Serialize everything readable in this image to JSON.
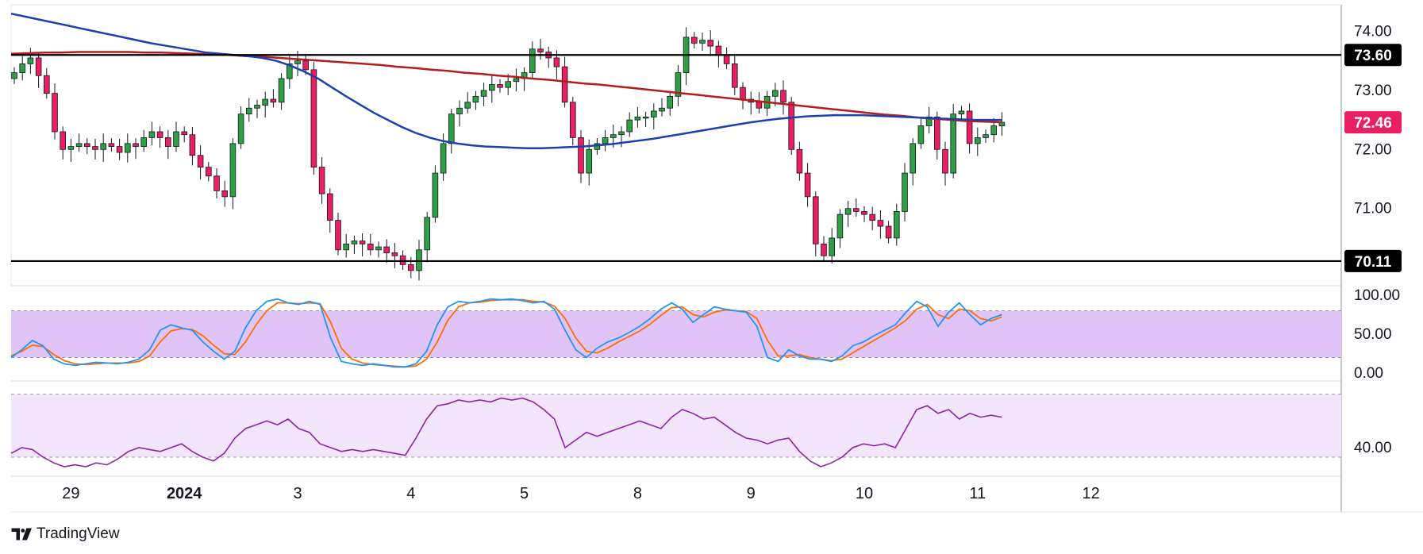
{
  "brand": {
    "name": "TradingView"
  },
  "colors": {
    "bull": "#26a69a",
    "bull_fill": "#2ea043",
    "bear": "#e91e63",
    "ma_fast": "#1e40af",
    "ma_slow": "#b71c1c",
    "stoch_k": "#2196f3",
    "stoch_d": "#ff6d00",
    "stoch_band": "#e1c4f7",
    "rsi_line": "#8e24aa",
    "rsi_band": "#f3e5fb",
    "price_tag": "#e91e63",
    "level_tag": "#000000"
  },
  "chart_data": [
    {
      "id": "price",
      "type": "candlestick",
      "y_ticks": [
        "74.00",
        "73.00",
        "72.00",
        "71.00"
      ],
      "ylim": [
        69.8,
        74.45
      ],
      "x_labels": [
        {
          "label": "29",
          "idx": 7
        },
        {
          "label": "2024",
          "idx": 21,
          "bold": true
        },
        {
          "label": "3",
          "idx": 35
        },
        {
          "label": "4",
          "idx": 49
        },
        {
          "label": "5",
          "idx": 63
        },
        {
          "label": "8",
          "idx": 77
        },
        {
          "label": "9",
          "idx": 91
        },
        {
          "label": "10",
          "idx": 105
        },
        {
          "label": "11",
          "idx": 119
        },
        {
          "label": "12",
          "idx": 133
        }
      ],
      "horizontal_levels": [
        {
          "value": 73.6,
          "label": "73.60"
        },
        {
          "value": 70.11,
          "label": "70.11"
        }
      ],
      "last_price": {
        "value": 72.46,
        "label": "72.46"
      },
      "close": [
        73.3,
        73.45,
        73.55,
        73.25,
        72.95,
        72.3,
        72.0,
        72.05,
        72.1,
        72.05,
        72.0,
        72.1,
        72.05,
        71.95,
        72.1,
        72.05,
        72.2,
        72.3,
        72.2,
        72.05,
        72.3,
        72.25,
        71.9,
        71.7,
        71.55,
        71.3,
        71.2,
        72.1,
        72.6,
        72.7,
        72.75,
        72.85,
        72.8,
        73.2,
        73.45,
        73.5,
        73.35,
        71.7,
        71.25,
        70.8,
        70.3,
        70.4,
        70.45,
        70.4,
        70.3,
        70.35,
        70.25,
        70.2,
        70.05,
        69.95,
        70.3,
        70.85,
        71.6,
        72.1,
        72.6,
        72.7,
        72.8,
        72.9,
        73.0,
        73.1,
        73.05,
        73.15,
        73.2,
        73.3,
        73.7,
        73.65,
        73.55,
        73.4,
        72.8,
        72.2,
        71.6,
        72.0,
        72.1,
        72.2,
        72.25,
        72.3,
        72.5,
        72.55,
        72.55,
        72.65,
        72.7,
        72.9,
        73.3,
        73.9,
        73.8,
        73.85,
        73.75,
        73.6,
        73.45,
        73.05,
        72.85,
        72.8,
        72.7,
        72.9,
        73.0,
        72.8,
        72.0,
        71.6,
        71.2,
        70.4,
        70.2,
        70.5,
        70.9,
        71.0,
        70.95,
        70.9,
        70.8,
        70.7,
        70.5,
        70.95,
        71.6,
        72.1,
        72.4,
        72.55,
        72.0,
        71.6,
        72.6,
        72.65,
        72.1,
        72.2,
        72.25,
        72.4,
        72.46
      ],
      "ma_fast": [
        74.3,
        74.25,
        74.2,
        74.15,
        74.1,
        74.05,
        74.0,
        73.95,
        73.9,
        73.85,
        73.8,
        73.76,
        73.72,
        73.68,
        73.64,
        73.62,
        73.6,
        73.58,
        73.55,
        73.5,
        73.42,
        73.32,
        73.2,
        73.05,
        72.9,
        72.76,
        72.62,
        72.5,
        72.38,
        72.28,
        72.2,
        72.14,
        72.1,
        72.07,
        72.05,
        72.04,
        72.03,
        72.02,
        72.02,
        72.03,
        72.04,
        72.05,
        72.07,
        72.09,
        72.12,
        72.15,
        72.18,
        72.22,
        72.26,
        72.3,
        72.34,
        72.38,
        72.42,
        72.46,
        72.49,
        72.52,
        72.54,
        72.56,
        72.57,
        72.58,
        72.58,
        72.58,
        72.57,
        72.56,
        72.55,
        72.54,
        72.53,
        72.52,
        72.51,
        72.5,
        72.5,
        72.5
      ],
      "ma_slow": [
        73.62,
        73.63,
        73.64,
        73.64,
        73.65,
        73.65,
        73.65,
        73.65,
        73.64,
        73.64,
        73.63,
        73.62,
        73.61,
        73.6,
        73.58,
        73.57,
        73.55,
        73.53,
        73.51,
        73.49,
        73.47,
        73.45,
        73.43,
        73.4,
        73.38,
        73.35,
        73.33,
        73.3,
        73.28,
        73.25,
        73.23,
        73.2,
        73.18,
        73.15,
        73.12,
        73.1,
        73.07,
        73.04,
        73.01,
        72.98,
        72.95,
        72.92,
        72.89,
        72.86,
        72.83,
        72.8,
        72.77,
        72.74,
        72.71,
        72.68,
        72.65,
        72.62,
        72.59,
        72.57,
        72.54,
        72.52,
        72.5,
        72.48,
        72.47,
        72.46
      ]
    },
    {
      "id": "stochastic",
      "type": "line",
      "y_ticks": [
        "100.00",
        "50.00",
        "0.00"
      ],
      "ylim": [
        -10,
        112
      ],
      "band": [
        20,
        80
      ],
      "series": [
        {
          "key": "k",
          "values": [
            20,
            30,
            42,
            35,
            18,
            12,
            10,
            12,
            14,
            13,
            12,
            14,
            18,
            30,
            55,
            62,
            58,
            55,
            40,
            28,
            18,
            28,
            58,
            80,
            92,
            95,
            90,
            88,
            92,
            88,
            45,
            15,
            12,
            10,
            12,
            10,
            8,
            8,
            12,
            28,
            62,
            85,
            92,
            90,
            92,
            95,
            94,
            95,
            93,
            90,
            92,
            82,
            55,
            30,
            20,
            32,
            40,
            45,
            52,
            60,
            70,
            82,
            90,
            82,
            65,
            75,
            85,
            82,
            80,
            78,
            60,
            20,
            15,
            30,
            22,
            18,
            18,
            15,
            22,
            35,
            40,
            48,
            55,
            62,
            78,
            92,
            85,
            60,
            78,
            90,
            75,
            62,
            70,
            75
          ]
        },
        {
          "key": "d",
          "values": [
            22,
            28,
            36,
            34,
            24,
            16,
            12,
            11,
            12,
            13,
            13,
            13,
            15,
            22,
            40,
            54,
            57,
            56,
            48,
            36,
            25,
            24,
            40,
            62,
            80,
            90,
            90,
            89,
            90,
            89,
            65,
            32,
            18,
            13,
            11,
            10,
            9,
            8,
            9,
            18,
            40,
            68,
            85,
            90,
            91,
            93,
            94,
            94,
            94,
            92,
            91,
            86,
            70,
            45,
            28,
            26,
            32,
            40,
            47,
            54,
            63,
            74,
            84,
            85,
            75,
            72,
            78,
            81,
            80,
            79,
            70,
            42,
            22,
            22,
            24,
            20,
            18,
            16,
            18,
            26,
            34,
            42,
            50,
            58,
            68,
            82,
            88,
            75,
            70,
            82,
            80,
            70,
            67,
            72
          ]
        }
      ]
    },
    {
      "id": "rsi",
      "type": "line",
      "y_ticks": [
        "40.00"
      ],
      "ylim": [
        25,
        75
      ],
      "band": [
        35,
        68
      ],
      "series": [
        {
          "key": "rsi",
          "values": [
            37,
            40,
            39,
            35,
            32,
            30,
            31,
            30,
            32,
            31,
            34,
            38,
            40,
            39,
            38,
            40,
            42,
            38,
            35,
            33,
            37,
            45,
            50,
            52,
            54,
            52,
            55,
            50,
            48,
            42,
            40,
            38,
            39,
            38,
            39,
            38,
            37,
            36,
            45,
            55,
            62,
            63,
            65,
            64,
            65,
            64,
            66,
            65,
            66,
            64,
            60,
            55,
            40,
            44,
            48,
            46,
            48,
            50,
            52,
            54,
            52,
            50,
            56,
            60,
            58,
            55,
            56,
            52,
            48,
            45,
            44,
            42,
            44,
            45,
            38,
            33,
            30,
            32,
            35,
            40,
            42,
            41,
            42,
            40,
            50,
            60,
            62,
            58,
            60,
            55,
            58,
            56,
            57,
            56
          ]
        }
      ]
    }
  ]
}
